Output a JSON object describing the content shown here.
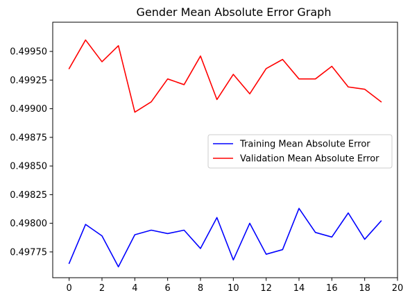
{
  "chart_data": {
    "type": "line",
    "title": "Gender Mean Absolute Error Graph",
    "xlabel": "",
    "ylabel": "",
    "xlim": [
      -1,
      20
    ],
    "ylim": [
      0.497525,
      0.499755
    ],
    "x_ticks": [
      0,
      2,
      4,
      6,
      8,
      10,
      12,
      14,
      16,
      18,
      20
    ],
    "y_ticks": [
      0.49775,
      0.498,
      0.49825,
      0.4985,
      0.49875,
      0.499,
      0.49925,
      0.4995
    ],
    "y_tick_labels": [
      "0.49775",
      "0.49800",
      "0.49825",
      "0.49850",
      "0.49875",
      "0.49900",
      "0.49925",
      "0.49950"
    ],
    "x_tick_labels": [
      "0",
      "2",
      "4",
      "6",
      "8",
      "10",
      "12",
      "14",
      "16",
      "18",
      "20"
    ],
    "grid": false,
    "legend_position": "center-right",
    "x": [
      0,
      1,
      2,
      3,
      4,
      5,
      6,
      7,
      8,
      9,
      10,
      11,
      12,
      13,
      14,
      15,
      16,
      17,
      18,
      19
    ],
    "series": [
      {
        "name": "Training Mean Absolute Error",
        "color": "#0000ff",
        "values": [
          0.49765,
          0.49799,
          0.49789,
          0.49762,
          0.4979,
          0.49794,
          0.49791,
          0.49794,
          0.49778,
          0.49805,
          0.49768,
          0.498,
          0.49773,
          0.49777,
          0.49813,
          0.49792,
          0.49788,
          0.49809,
          0.49786,
          0.49802
        ]
      },
      {
        "name": "Validation Mean Absolute Error",
        "color": "#ff0000",
        "values": [
          0.49935,
          0.4996,
          0.49941,
          0.49955,
          0.49897,
          0.49906,
          0.49926,
          0.49921,
          0.49946,
          0.49908,
          0.4993,
          0.49913,
          0.49935,
          0.49943,
          0.49926,
          0.49926,
          0.49937,
          0.49919,
          0.49917,
          0.49906
        ]
      }
    ]
  }
}
